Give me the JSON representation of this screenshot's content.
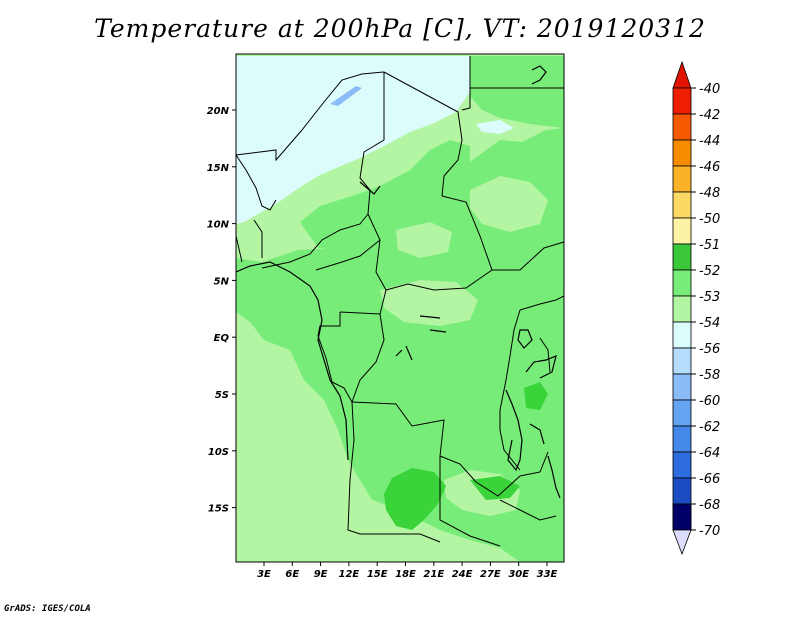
{
  "title": "Temperature at 200hPa [C], VT: 2019120312",
  "credit": "GrADS: IGES/COLA",
  "colors": {
    "frame": "#000000",
    "level_m54": "#dcfcfc",
    "level_m53": "#b4f5a4",
    "level_m52": "#78ec78",
    "level_m51": "#3ad43a"
  },
  "lat_ticks": [
    "20N",
    "15N",
    "10N",
    "5N",
    "EQ",
    "5S",
    "10S",
    "15S"
  ],
  "lon_ticks": [
    "3E",
    "6E",
    "9E",
    "12E",
    "15E",
    "18E",
    "21E",
    "24E",
    "27E",
    "30E",
    "33E"
  ],
  "colorbar": {
    "labels": [
      "-40",
      "-42",
      "-44",
      "-46",
      "-48",
      "-50",
      "-51",
      "-52",
      "-53",
      "-54",
      "-56",
      "-58",
      "-60",
      "-62",
      "-64",
      "-66",
      "-68",
      "-70"
    ],
    "colors": [
      "#f01e00",
      "#f55a00",
      "#f88c00",
      "#fab328",
      "#fcd864",
      "#fcf4a4",
      "#3ac83a",
      "#78ec78",
      "#b4f5a4",
      "#dcfcfc",
      "#b4dcfc",
      "#8cbcf8",
      "#64a4f0",
      "#4488e8",
      "#2c6cdc",
      "#1c4cc4",
      "#0c2894",
      "#000068"
    ],
    "top_triangle_color": "#e01400",
    "bottom_triangle_color": "#dcdcfc"
  }
}
